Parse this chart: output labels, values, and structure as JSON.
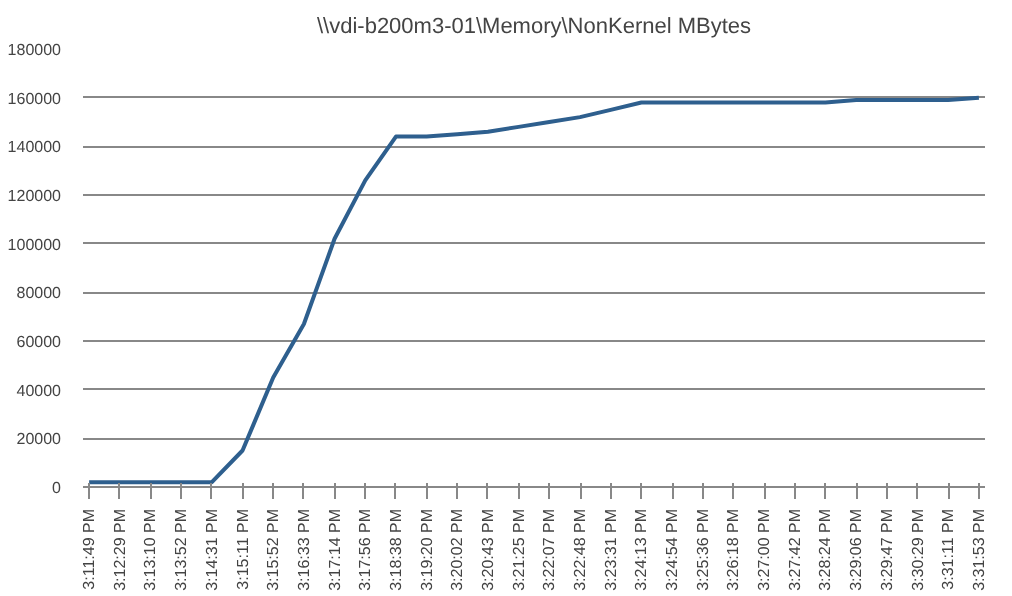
{
  "chart_data": {
    "type": "line",
    "title": "\\\\vdi-b200m3-01\\Memory\\NonKernel MBytes",
    "categories": [
      "3:11:49 PM",
      "3:12:29 PM",
      "3:13:10 PM",
      "3:13:52 PM",
      "3:14:31 PM",
      "3:15:11 PM",
      "3:15:52 PM",
      "3:16:33 PM",
      "3:17:14 PM",
      "3:17:56 PM",
      "3:18:38 PM",
      "3:19:20 PM",
      "3:20:02 PM",
      "3:20:43 PM",
      "3:21:25 PM",
      "3:22:07 PM",
      "3:22:48 PM",
      "3:23:31 PM",
      "3:24:13 PM",
      "3:24:54 PM",
      "3:25:36 PM",
      "3:26:18 PM",
      "3:27:00 PM",
      "3:27:42 PM",
      "3:28:24 PM",
      "3:29:06 PM",
      "3:29:47 PM",
      "3:30:29 PM",
      "3:31:11 PM",
      "3:31:53 PM"
    ],
    "series": [
      {
        "color": "#2e5f8e",
        "values": [
          2000,
          2000,
          2000,
          2000,
          2000,
          15000,
          45000,
          67000,
          102000,
          126000,
          144000,
          144000,
          145000,
          146000,
          148000,
          150000,
          152000,
          155000,
          158000,
          158000,
          158000,
          158000,
          158000,
          158000,
          158000,
          159000,
          159000,
          159000,
          159000,
          160000
        ]
      }
    ],
    "ylim": [
      0,
      180000
    ],
    "yticks": [
      0,
      20000,
      40000,
      60000,
      80000,
      100000,
      120000,
      140000,
      160000,
      180000
    ],
    "grid": "y",
    "marker": "none",
    "line_style": "solid"
  }
}
